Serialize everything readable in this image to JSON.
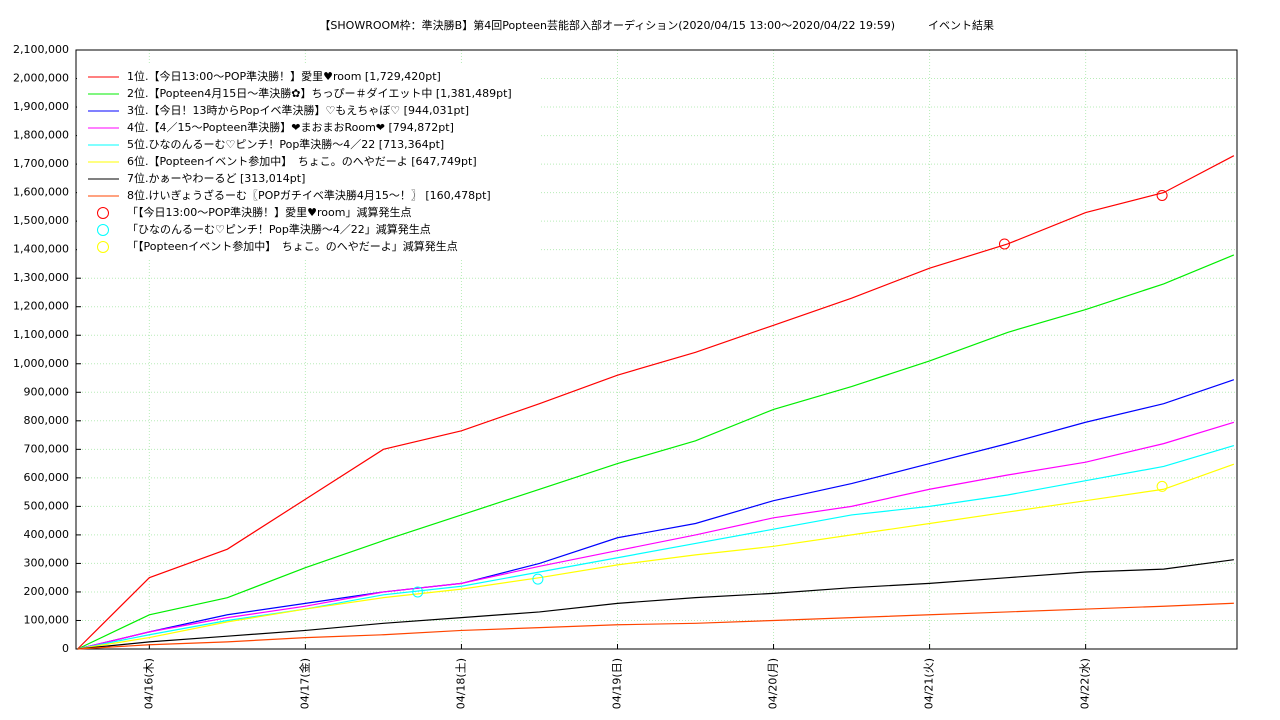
{
  "chart_data": {
    "type": "line",
    "title": "【SHOWROOM枠：準決勝B】第4回Popteen芸能部入部オーディション(2020/04/15 13:00〜2020/04/22 19:59)",
    "subtitle": "イベント結果",
    "x": [
      15.54,
      16,
      16.5,
      17,
      17.5,
      18,
      18.5,
      19,
      19.5,
      20,
      20.5,
      21,
      21.5,
      22,
      22.5,
      22.95
    ],
    "xlim": [
      15.53,
      22.97
    ],
    "xticks": [
      {
        "value": 16,
        "label": "04/16(木)"
      },
      {
        "value": 17,
        "label": "04/17(金)"
      },
      {
        "value": 18,
        "label": "04/18(土)"
      },
      {
        "value": 19,
        "label": "04/19(日)"
      },
      {
        "value": 20,
        "label": "04/20(月)"
      },
      {
        "value": 21,
        "label": "04/21(火)"
      },
      {
        "value": 22,
        "label": "04/22(水)"
      }
    ],
    "ylim": [
      0,
      2100000
    ],
    "yticks": [
      0,
      {
        "value": 100000,
        "label": "100,000"
      },
      {
        "value": 200000,
        "label": "200,000"
      },
      {
        "value": 300000,
        "label": "300,000"
      },
      {
        "value": 400000,
        "label": "400,000"
      },
      {
        "value": 500000,
        "label": "500,000"
      },
      {
        "value": 600000,
        "label": "600,000"
      },
      {
        "value": 700000,
        "label": "700,000"
      },
      {
        "value": 800000,
        "label": "800,000"
      },
      {
        "value": 900000,
        "label": "900,000"
      },
      {
        "value": 1000000,
        "label": "1,000,000"
      },
      {
        "value": 1100000,
        "label": "1,100,000"
      },
      {
        "value": 1200000,
        "label": "1,200,000"
      },
      {
        "value": 1300000,
        "label": "1,300,000"
      },
      {
        "value": 1400000,
        "label": "1,400,000"
      },
      {
        "value": 1500000,
        "label": "1,500,000"
      },
      {
        "value": 1600000,
        "label": "1,600,000"
      },
      {
        "value": 1700000,
        "label": "1,700,000"
      },
      {
        "value": 1800000,
        "label": "1,800,000"
      },
      {
        "value": 1900000,
        "label": "1,900,000"
      },
      {
        "value": 2000000,
        "label": "2,000,000"
      },
      {
        "value": 2100000,
        "label": "2,100,000"
      }
    ],
    "grid": true,
    "legend": "upper left",
    "series": [
      {
        "name": "1位.【今日13:00〜POP準決勝！】愛里♥room [1,729,420pt]",
        "color": "#ff0000",
        "values": [
          0,
          250000,
          350000,
          525000,
          700000,
          765000,
          860000,
          960000,
          1040000,
          1135000,
          1230000,
          1335000,
          1420000,
          1530000,
          1600000,
          1729420
        ]
      },
      {
        "name": "2位.【Popteen4月15日〜準決勝✿】ちっぴー＃ダイエット中 [1,381,489pt]",
        "color": "#00ee00",
        "values": [
          0,
          120000,
          180000,
          285000,
          380000,
          470000,
          560000,
          650000,
          730000,
          840000,
          920000,
          1010000,
          1110000,
          1190000,
          1280000,
          1381489
        ]
      },
      {
        "name": "3位.【今日！13時からPopイベ準決勝】♡もえちゃぼ♡ [944,031pt]",
        "color": "#0000ff",
        "values": [
          0,
          60000,
          120000,
          160000,
          200000,
          230000,
          300000,
          390000,
          440000,
          520000,
          580000,
          650000,
          720000,
          795000,
          860000,
          944031
        ]
      },
      {
        "name": "4位.【4／15〜Popteen準決勝】❤まおまおRoom❤ [794,872pt]",
        "color": "#ff00ff",
        "values": [
          0,
          60000,
          110000,
          150000,
          200000,
          230000,
          290000,
          345000,
          400000,
          460000,
          500000,
          560000,
          610000,
          655000,
          720000,
          794872
        ]
      },
      {
        "name": "5位.ひなのんるーむ♡ピンチ！Pop準決勝〜4／22 [713,364pt]",
        "color": "#00ffff",
        "values": [
          0,
          50000,
          100000,
          140000,
          190000,
          220000,
          270000,
          320000,
          370000,
          420000,
          470000,
          500000,
          540000,
          590000,
          640000,
          713364
        ]
      },
      {
        "name": "6位.【Popteenイベント参加中】　ちょこ。のへやだーよ [647,749pt]",
        "color": "#ffff00",
        "values": [
          0,
          40000,
          95000,
          140000,
          180000,
          210000,
          250000,
          295000,
          330000,
          360000,
          400000,
          440000,
          480000,
          520000,
          560000,
          647749
        ]
      },
      {
        "name": "7位.かぁーやわーるど [313,014pt]",
        "color": "#000000",
        "values": [
          0,
          25000,
          45000,
          65000,
          90000,
          110000,
          130000,
          160000,
          180000,
          195000,
          215000,
          230000,
          250000,
          270000,
          280000,
          313014
        ]
      },
      {
        "name": "8位.けいぎょうざるーむ〖POPガチイベ準決勝4月15〜！〗 [160,478pt]",
        "color": "#ff4500",
        "values": [
          0,
          15000,
          25000,
          40000,
          50000,
          65000,
          75000,
          85000,
          90000,
          100000,
          110000,
          120000,
          130000,
          140000,
          150000,
          160478
        ]
      }
    ],
    "markers": [
      {
        "name": "「【今日13:00〜POP準決勝！】愛里♥room」減算発生点",
        "color": "#ff0000",
        "x": [
          21.48,
          22.49
        ],
        "values": [
          1420000,
          1590000
        ]
      },
      {
        "name": "「ひなのんるーむ♡ピンチ！Pop準決勝〜4／22」減算発生点",
        "color": "#00ffff",
        "x": [
          17.72,
          18.49
        ],
        "values": [
          200000,
          245000
        ]
      },
      {
        "name": "「【Popteenイベント参加中】　ちょこ。のへやだーよ」減算発生点",
        "color": "#ffff00",
        "x": [
          22.49
        ],
        "values": [
          570000
        ]
      }
    ]
  }
}
